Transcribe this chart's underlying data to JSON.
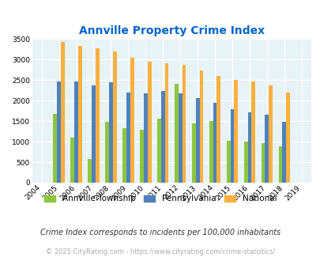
{
  "title": "Annville Property Crime Index",
  "title_color": "#0066cc",
  "years": [
    2004,
    2005,
    2006,
    2007,
    2008,
    2009,
    2010,
    2011,
    2012,
    2013,
    2014,
    2015,
    2016,
    2017,
    2018,
    2019
  ],
  "annville": [
    0,
    1680,
    1100,
    580,
    1490,
    1340,
    1290,
    1560,
    2420,
    1440,
    1500,
    1020,
    1010,
    960,
    890,
    0
  ],
  "pennsylvania": [
    0,
    2460,
    2470,
    2370,
    2440,
    2200,
    2170,
    2240,
    2170,
    2070,
    1940,
    1800,
    1710,
    1650,
    1490,
    0
  ],
  "national": [
    0,
    3430,
    3340,
    3270,
    3200,
    3040,
    2960,
    2910,
    2870,
    2730,
    2600,
    2500,
    2470,
    2380,
    2200,
    0
  ],
  "annville_color": "#8dc63f",
  "pennsylvania_color": "#4f81bd",
  "national_color": "#fbb040",
  "plot_bg": "#e8f3f8",
  "grid_color": "#ffffff",
  "ylim": [
    0,
    3500
  ],
  "yticks": [
    0,
    500,
    1000,
    1500,
    2000,
    2500,
    3000,
    3500
  ],
  "footnote": "Crime Index corresponds to incidents per 100,000 inhabitants",
  "copyright": "© 2025 CityRating.com - https://www.cityrating.com/crime-statistics/",
  "footnote_color": "#333333",
  "copyright_color": "#aaaaaa",
  "legend_labels": [
    "Annville Township",
    "Pennsylvania",
    "National"
  ]
}
